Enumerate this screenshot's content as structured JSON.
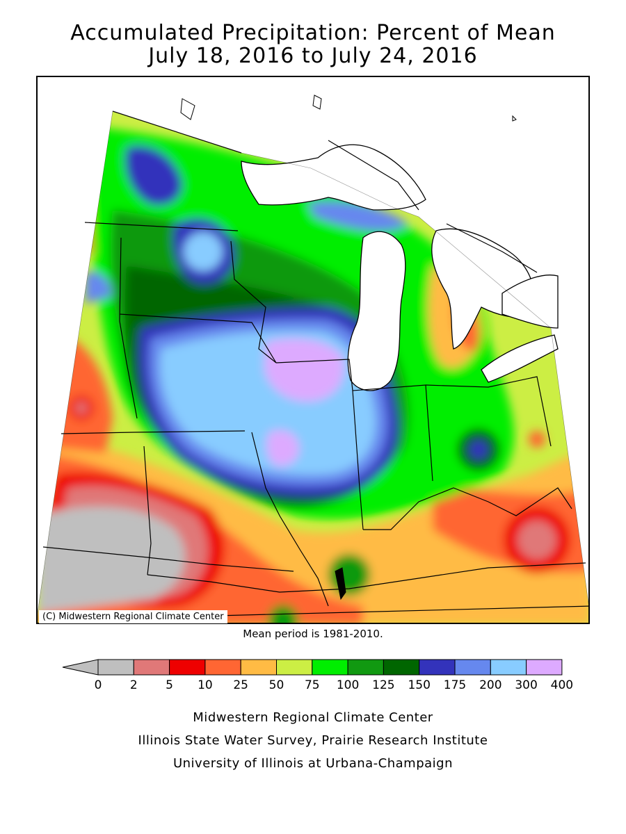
{
  "title": {
    "line1": "Accumulated Precipitation: Percent of Mean",
    "line2": "July 18, 2016 to July 24, 2016"
  },
  "map": {
    "credit": "(C) Midwestern Regional Climate Center",
    "mean_note": "Mean period is 1981-2010."
  },
  "legend": {
    "ticks": [
      "0",
      "2",
      "5",
      "10",
      "25",
      "50",
      "75",
      "100",
      "125",
      "150",
      "175",
      "200",
      "300",
      "400"
    ],
    "colors": [
      "#bfbfbf",
      "#e07878",
      "#ee0000",
      "#ff6633",
      "#ffbb44",
      "#ccee44",
      "#00ee00",
      "#119911",
      "#006600",
      "#3333bb",
      "#6688ee",
      "#88ccff",
      "#ddaaff"
    ]
  },
  "footer": {
    "line1": "Midwestern Regional Climate Center",
    "line2": "Illinois State Water Survey, Prairie Research Institute",
    "line3": "University of Illinois at Urbana-Champaign"
  }
}
